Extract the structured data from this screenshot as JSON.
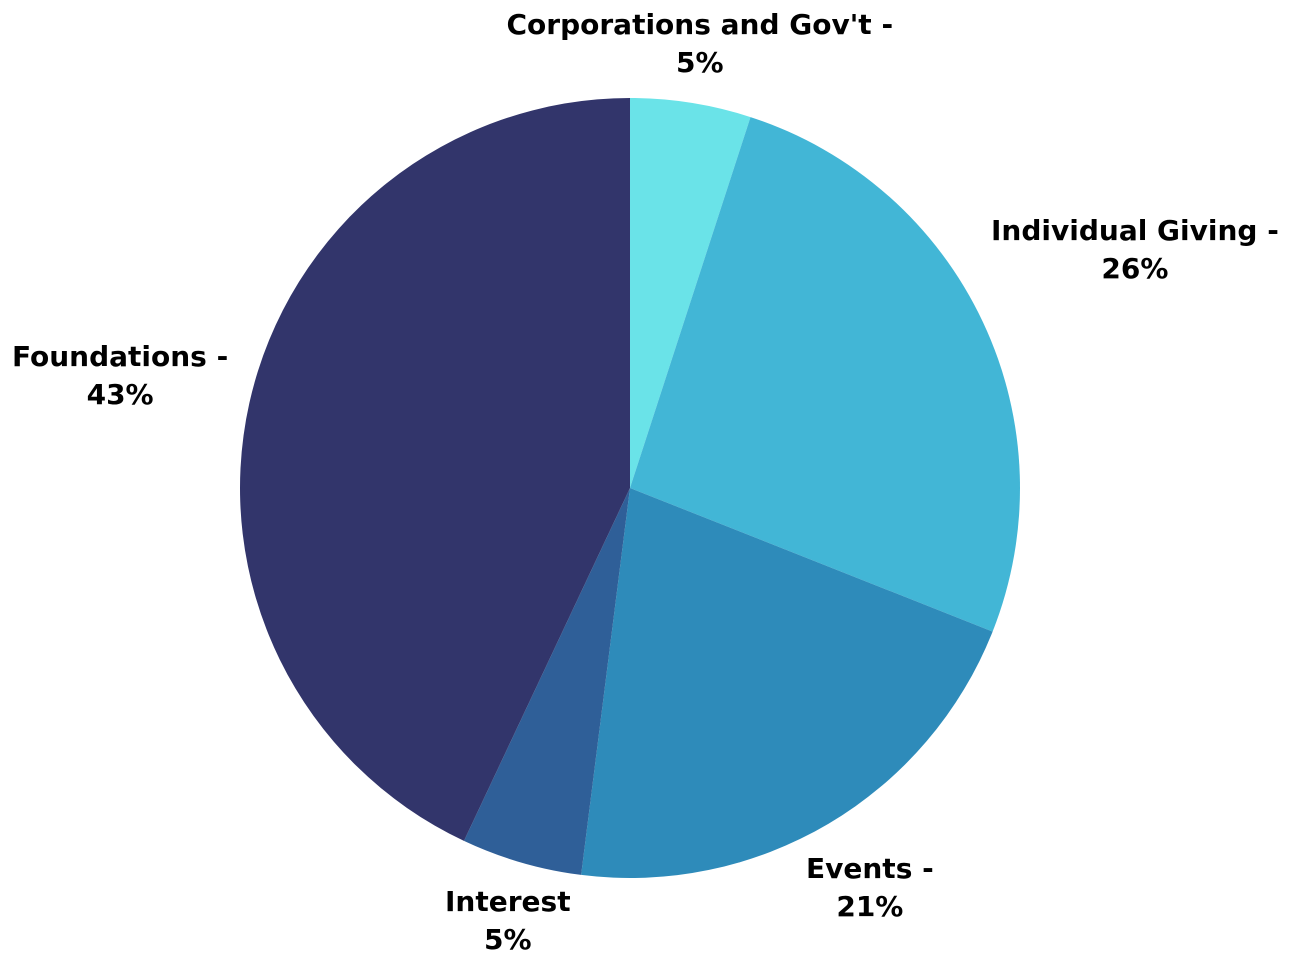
{
  "chart_data": {
    "type": "pie",
    "start_angle_deg": 0,
    "direction": "clockwise",
    "slices": [
      {
        "name": "Corporations and Gov't",
        "value": 5,
        "label_line1": "Corporations and Gov't -",
        "label_line2": "5%",
        "color": "#6ae3e8"
      },
      {
        "name": "Individual Giving",
        "value": 26,
        "label_line1": "Individual Giving -",
        "label_line2": "26%",
        "color": "#42b6d6"
      },
      {
        "name": "Events",
        "value": 21,
        "label_line1": "Events -",
        "label_line2": "21%",
        "color": "#2e8bba"
      },
      {
        "name": "Interest",
        "value": 5,
        "label_line1": "Interest",
        "label_line2": "5%",
        "color": "#2f5f98"
      },
      {
        "name": "Foundations",
        "value": 43,
        "label_line1": "Foundations -",
        "label_line2": "43%",
        "color": "#32356b"
      }
    ]
  }
}
